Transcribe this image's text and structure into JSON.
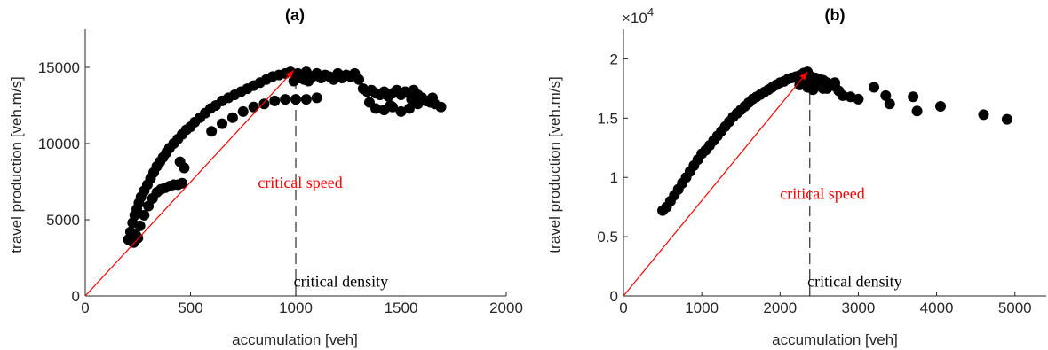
{
  "colors": {
    "points": "#000000",
    "speed_line": "#ff0000",
    "density_line": "#000000",
    "axis": "#262626"
  },
  "chart_data": [
    {
      "type": "scatter",
      "title": "(a)",
      "xlabel": "accumulation [veh]",
      "ylabel": "travel production [veh.m/s]",
      "xlim": [
        0,
        2000
      ],
      "ylim": [
        0,
        17500
      ],
      "xticks": [
        0,
        500,
        1000,
        1500,
        2000
      ],
      "yticks": [
        0,
        5000,
        10000,
        15000
      ],
      "xtick_labels": [
        "0",
        "500",
        "1000",
        "1500",
        "2000"
      ],
      "ytick_labels": [
        "0",
        "5000",
        "10000",
        "15000"
      ],
      "y_exponent_label": "",
      "grid": false,
      "points": {
        "x": [
          205,
          215,
          225,
          235,
          245,
          255,
          265,
          280,
          295,
          310,
          325,
          340,
          355,
          370,
          385,
          400,
          420,
          440,
          460,
          480,
          500,
          520,
          545,
          570,
          595,
          620,
          650,
          680,
          710,
          740,
          770,
          800,
          830,
          860,
          890,
          920,
          950,
          975,
          220,
          240,
          260,
          280,
          300,
          320,
          340,
          360,
          380,
          400,
          420,
          440,
          460,
          600,
          650,
          700,
          750,
          800,
          850,
          900,
          950,
          1000,
          1050,
          1100,
          990,
          1000,
          1010,
          1020,
          1030,
          1040,
          1050,
          1060,
          1080,
          1100,
          1120,
          1140,
          1160,
          1180,
          1200,
          1220,
          1240,
          1260,
          1280,
          1300,
          1320,
          1340,
          1360,
          1380,
          1400,
          1420,
          1440,
          1460,
          1480,
          1500,
          1520,
          1540,
          1560,
          1580,
          1600,
          1620,
          1640,
          1660,
          1690,
          1380,
          1420,
          1460,
          1500,
          1540,
          1580,
          1620,
          1350,
          1450,
          1550,
          1650,
          470,
          450,
          230,
          250
        ],
        "y": [
          3700,
          4200,
          4800,
          5300,
          5700,
          6100,
          6500,
          6900,
          7300,
          7700,
          8100,
          8500,
          8800,
          9100,
          9400,
          9700,
          10000,
          10300,
          10600,
          10900,
          11100,
          11400,
          11700,
          12000,
          12300,
          12500,
          12800,
          13000,
          13200,
          13400,
          13600,
          13800,
          14000,
          14200,
          14400,
          14500,
          14600,
          14700,
          3600,
          4000,
          4600,
          5300,
          5900,
          6400,
          6800,
          7000,
          7100,
          7200,
          7300,
          7300,
          7400,
          10800,
          11300,
          11700,
          12100,
          12400,
          12600,
          12800,
          12900,
          12900,
          12900,
          13000,
          14100,
          14400,
          14600,
          14300,
          14500,
          14200,
          14700,
          14100,
          14400,
          14600,
          14300,
          14500,
          14400,
          14200,
          14600,
          14300,
          14500,
          14400,
          14600,
          14200,
          13600,
          13400,
          13500,
          13300,
          13200,
          13400,
          13100,
          13300,
          13500,
          13200,
          13400,
          13300,
          13500,
          13200,
          13000,
          12800,
          12700,
          12600,
          12400,
          12300,
          12200,
          12400,
          12100,
          12300,
          12600,
          12800,
          12700,
          12500,
          12900,
          13000,
          8400,
          8800,
          3500,
          3800
        ]
      },
      "reference_lines": [
        {
          "name": "critical speed",
          "type": "line",
          "x": [
            0,
            990
          ],
          "y": [
            0,
            14800
          ]
        },
        {
          "name": "critical density",
          "type": "vertical-dashed",
          "x": 1000,
          "y": [
            0,
            14500
          ]
        }
      ],
      "annotations": [
        {
          "text": "critical speed",
          "color": "#ff0000",
          "x": 820,
          "y": 7100
        },
        {
          "text": "critical density",
          "color": "#000000",
          "x": 990,
          "y": 600
        }
      ]
    },
    {
      "type": "scatter",
      "title": "(b)",
      "xlabel": "accumulation [veh]",
      "ylabel": "travel production [veh.m/s]",
      "xlim": [
        0,
        5400
      ],
      "ylim": [
        0,
        22500
      ],
      "xticks": [
        0,
        1000,
        2000,
        3000,
        4000,
        5000
      ],
      "yticks": [
        0,
        5000,
        10000,
        15000,
        20000
      ],
      "xtick_labels": [
        "0",
        "1000",
        "2000",
        "3000",
        "4000",
        "5000"
      ],
      "ytick_labels": [
        "0",
        "0.5",
        "1",
        "1.5",
        "2"
      ],
      "y_exponent_label": "×10",
      "y_exponent_power": "4",
      "grid": false,
      "points": {
        "x": [
          500,
          550,
          600,
          650,
          700,
          750,
          800,
          850,
          900,
          950,
          1000,
          1050,
          1100,
          1150,
          1200,
          1250,
          1300,
          1350,
          1400,
          1450,
          1500,
          1550,
          1600,
          1650,
          1700,
          1750,
          1800,
          1850,
          1900,
          1950,
          2000,
          2050,
          2100,
          2150,
          2200,
          2250,
          2300,
          2350,
          2400,
          2450,
          2500,
          2550,
          2600,
          2650,
          2700,
          2750,
          2800,
          2900,
          3000,
          3200,
          3350,
          3400,
          3700,
          3750,
          4050,
          4600,
          4900,
          2250,
          2300,
          2350,
          2400,
          2450,
          2500,
          2550,
          2350,
          2420,
          2480,
          2600,
          2700
        ],
        "y": [
          7200,
          7500,
          8000,
          8500,
          9000,
          9500,
          10000,
          10500,
          11000,
          11500,
          12000,
          12300,
          12700,
          13100,
          13500,
          13900,
          14300,
          14700,
          15100,
          15400,
          15700,
          16000,
          16300,
          16600,
          16800,
          17000,
          17200,
          17400,
          17600,
          17800,
          18000,
          18100,
          18300,
          18400,
          18500,
          18600,
          18800,
          18900,
          18500,
          18400,
          18300,
          18200,
          18000,
          17800,
          17700,
          17300,
          16900,
          16800,
          16600,
          17600,
          16900,
          16200,
          16800,
          15600,
          16000,
          15300,
          14900,
          17800,
          18100,
          17600,
          18300,
          17900,
          18200,
          17500,
          18700,
          17400,
          17700,
          17500,
          18000
        ]
      },
      "reference_lines": [
        {
          "name": "critical speed",
          "type": "line",
          "x": [
            0,
            2350
          ],
          "y": [
            0,
            18900
          ]
        },
        {
          "name": "critical density",
          "type": "vertical-dashed",
          "x": 2380,
          "y": [
            0,
            18700
          ]
        }
      ],
      "annotations": [
        {
          "text": "critical speed",
          "color": "#ff0000",
          "x": 2000,
          "y": 8200
        },
        {
          "text": "critical density",
          "color": "#000000",
          "x": 2350,
          "y": 800
        }
      ]
    }
  ]
}
